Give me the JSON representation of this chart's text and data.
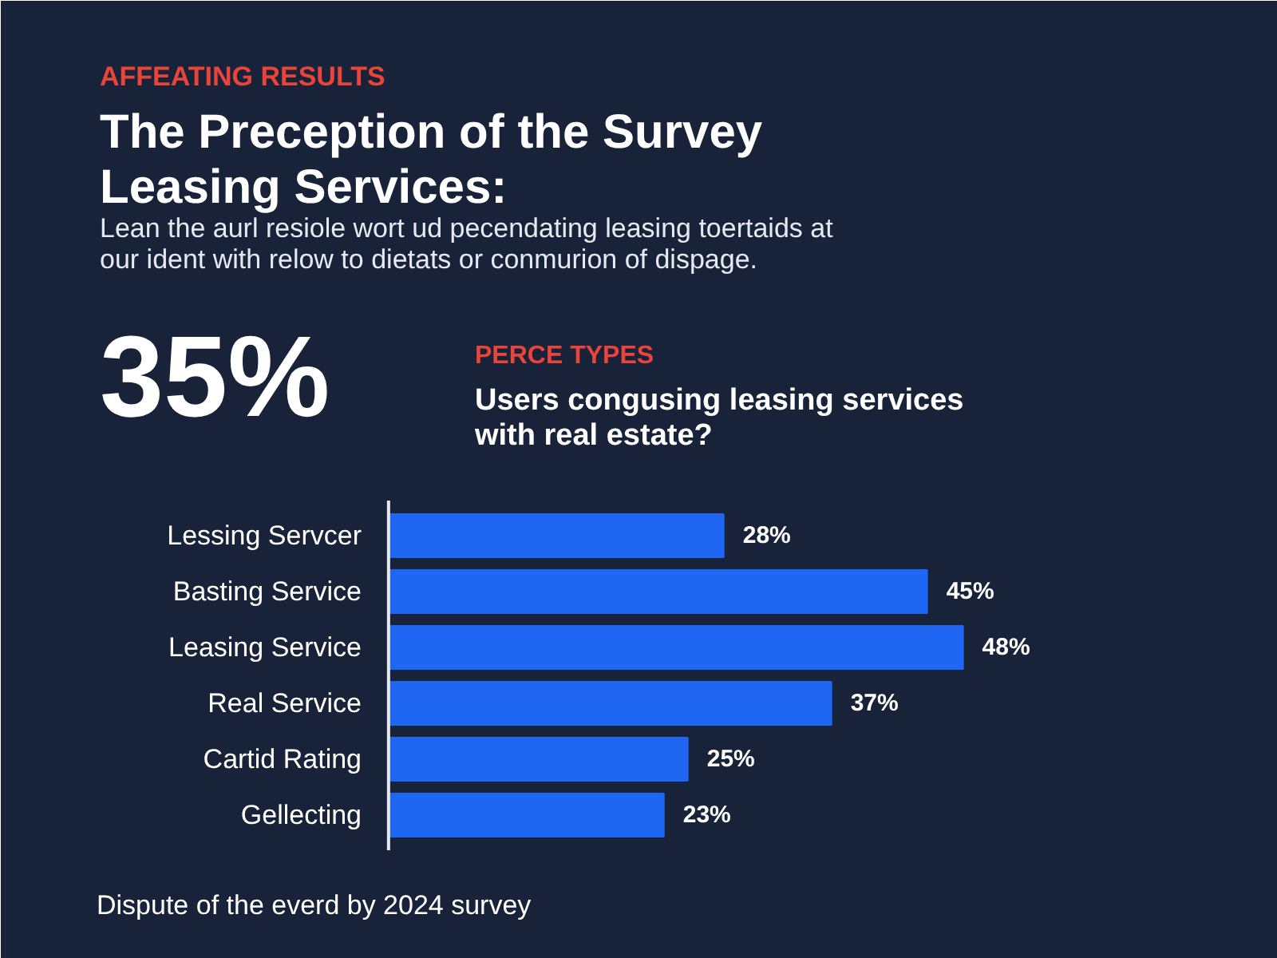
{
  "chart_data": {
    "type": "bar",
    "orientation": "horizontal",
    "title": "The Preception of the Survey Leasing Services:",
    "subtitle": "Lean the aurl resiole wort ud pecendating leasing toertaids at our ident with relow to dietats or conmurion of dispage.",
    "annotations": [
      "AFFEATING RESULTS",
      "35%",
      "PERCE TYPES",
      "Users congusing leasing services with real estate?",
      "Dispute of the everd by 2024 survey"
    ],
    "categories": [
      "Lessing Servcer",
      "Basting Service",
      "Leasing Service",
      "Real Service",
      "Cartid Rating",
      "Gellecting"
    ],
    "values": [
      28,
      45,
      48,
      37,
      25,
      23
    ],
    "value_labels": [
      "28%",
      "45%",
      "48%",
      "37%",
      "25%",
      "23%"
    ],
    "color": "#1f66f2",
    "tick_labels": "y"
  }
}
